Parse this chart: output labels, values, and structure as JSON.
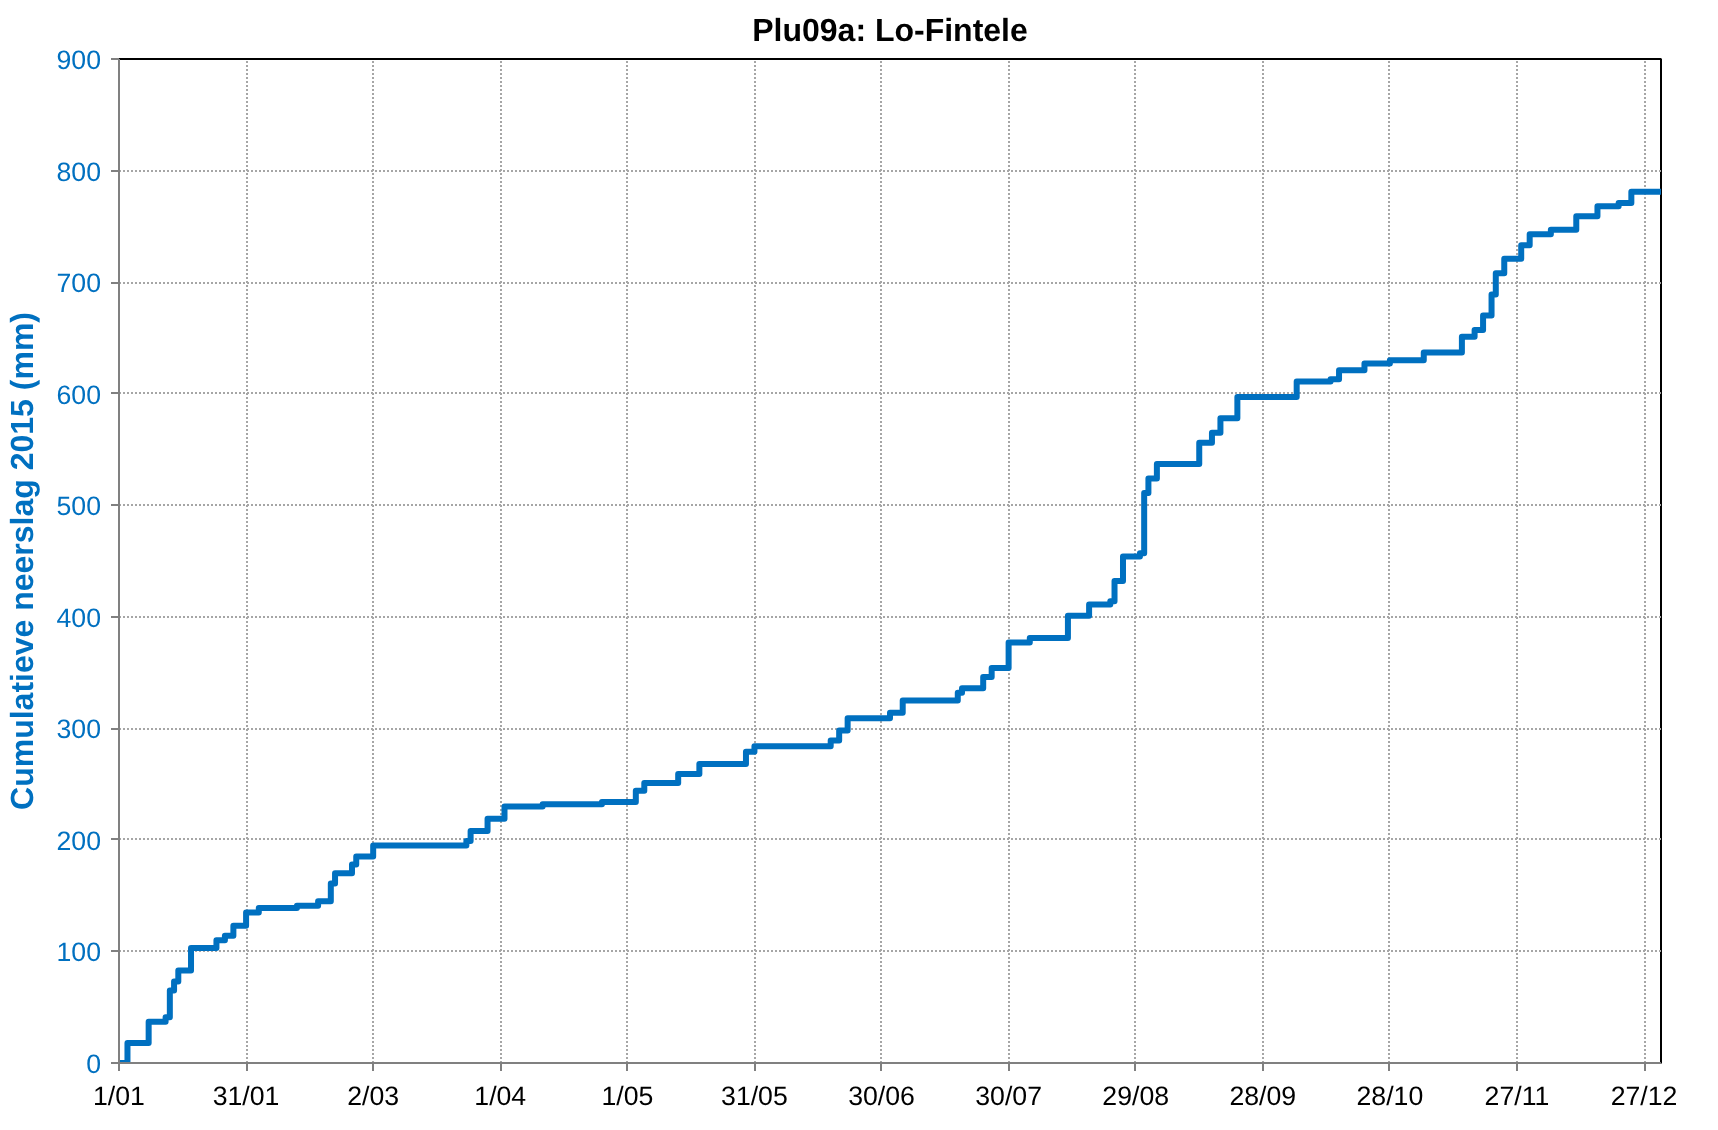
{
  "chart_data": {
    "type": "step",
    "title": "Plu09a: Lo-Fintele",
    "ylabel": "Cumulatieve neerslag 2015 (mm)",
    "x": [
      "2015-01-01",
      "2015-01-03",
      "2015-01-08",
      "2015-01-12",
      "2015-01-13",
      "2015-01-14",
      "2015-01-15",
      "2015-01-18",
      "2015-01-24",
      "2015-01-26",
      "2015-01-28",
      "2015-01-31",
      "2015-02-03",
      "2015-02-12",
      "2015-02-17",
      "2015-02-20",
      "2015-02-21",
      "2015-02-25",
      "2015-02-26",
      "2015-03-02",
      "2015-03-24",
      "2015-03-25",
      "2015-03-29",
      "2015-04-02",
      "2015-04-11",
      "2015-04-25",
      "2015-05-03",
      "2015-05-05",
      "2015-05-13",
      "2015-05-18",
      "2015-05-29",
      "2015-05-31",
      "2015-06-18",
      "2015-06-20",
      "2015-06-22",
      "2015-07-02",
      "2015-07-05",
      "2015-07-18",
      "2015-07-19",
      "2015-07-24",
      "2015-07-26",
      "2015-07-30",
      "2015-08-04",
      "2015-08-13",
      "2015-08-18",
      "2015-08-23",
      "2015-08-24",
      "2015-08-26",
      "2015-08-30",
      "2015-08-31",
      "2015-09-01",
      "2015-09-03",
      "2015-09-13",
      "2015-09-16",
      "2015-09-18",
      "2015-09-22",
      "2015-10-06",
      "2015-10-14",
      "2015-10-16",
      "2015-10-22",
      "2015-10-28",
      "2015-11-05",
      "2015-11-14",
      "2015-11-17",
      "2015-11-19",
      "2015-11-21",
      "2015-11-22",
      "2015-11-24",
      "2015-11-28",
      "2015-11-30",
      "2015-12-05",
      "2015-12-11",
      "2015-12-16",
      "2015-12-21",
      "2015-12-24",
      "2015-12-31"
    ],
    "series": [
      {
        "color": "#0070c0",
        "values": [
          0,
          18,
          37,
          41,
          65,
          73,
          83,
          103,
          110,
          114,
          123,
          135,
          139,
          141,
          145,
          161,
          170,
          178,
          185,
          195,
          199,
          208,
          219,
          230,
          232,
          234,
          244,
          251,
          259,
          268,
          279,
          284,
          289,
          298,
          309,
          314,
          325,
          332,
          336,
          346,
          354,
          377,
          381,
          401,
          411,
          414,
          432,
          454,
          457,
          511,
          524,
          537,
          556,
          565,
          578,
          597,
          611,
          613,
          621,
          627,
          630,
          637,
          651,
          657,
          670,
          689,
          708,
          721,
          733,
          743,
          747,
          759,
          768,
          771,
          781,
          781
        ]
      }
    ],
    "xlim": [
      "2015-01-01",
      "2015-12-31"
    ],
    "xticks": [
      {
        "value": "2015-01-01",
        "label": "1/01"
      },
      {
        "value": "2015-01-31",
        "label": "31/01"
      },
      {
        "value": "2015-03-02",
        "label": "2/03"
      },
      {
        "value": "2015-04-01",
        "label": "1/04"
      },
      {
        "value": "2015-05-01",
        "label": "1/05"
      },
      {
        "value": "2015-05-31",
        "label": "31/05"
      },
      {
        "value": "2015-06-30",
        "label": "30/06"
      },
      {
        "value": "2015-07-30",
        "label": "30/07"
      },
      {
        "value": "2015-08-29",
        "label": "29/08"
      },
      {
        "value": "2015-09-28",
        "label": "28/09"
      },
      {
        "value": "2015-10-28",
        "label": "28/10"
      },
      {
        "value": "2015-11-27",
        "label": "27/11"
      },
      {
        "value": "2015-12-27",
        "label": "27/12"
      }
    ],
    "ylim": [
      0,
      900
    ],
    "yticks": [
      0,
      100,
      200,
      300,
      400,
      500,
      600,
      700,
      800,
      900
    ],
    "grid": true
  }
}
